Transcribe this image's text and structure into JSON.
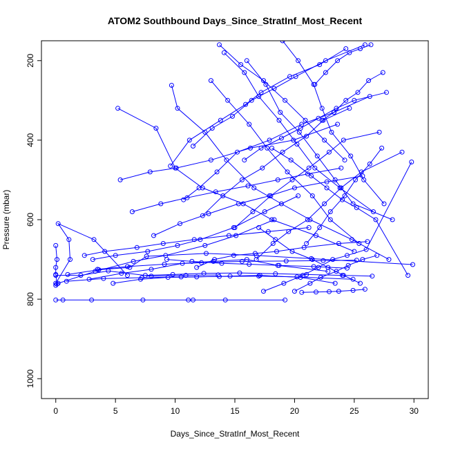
{
  "chart_data": {
    "type": "line",
    "title": "ATOM2 Southbound Days_Since_StratInf_Most_Recent",
    "xlabel": "Days_Since_StratInf_Most_Recent",
    "ylabel": "Pressure (mbar)",
    "xlim": [
      -1.2,
      31.2
    ],
    "ylim": [
      1050,
      150
    ],
    "y_reversed": true,
    "x_ticks": [
      0,
      5,
      10,
      15,
      20,
      25,
      30
    ],
    "y_ticks": [
      200,
      400,
      600,
      800,
      1000
    ],
    "grid": false,
    "marker": "open-circle",
    "colors": {
      "series": "#0000ff",
      "axes": "#000000"
    },
    "series": [
      {
        "x": [
          0.0,
          0.6,
          3.0,
          7.3,
          11.1,
          11.5,
          14.2,
          19.2
        ],
        "y": [
          802,
          802,
          802,
          802,
          802,
          802,
          802,
          802
        ]
      },
      {
        "x": [
          0.0,
          0.1,
          0.0,
          0.0,
          0.1,
          0.0
        ],
        "y": [
          765,
          762,
          738,
          720,
          700,
          665
        ]
      },
      {
        "x": [
          0.0,
          1.2,
          1.1,
          0.2,
          3.2,
          6.0
        ],
        "y": [
          760,
          700,
          650,
          610,
          650,
          740
        ]
      },
      {
        "x": [
          0.0,
          2.1,
          4.4,
          8.0,
          10.9,
          13.6
        ],
        "y": [
          740,
          740,
          729,
          742,
          740,
          739
        ]
      },
      {
        "x": [
          0.2,
          3.3,
          6.5,
          9.2,
          12.5,
          15.1,
          18.3
        ],
        "y": [
          760,
          730,
          705,
          690,
          665,
          640,
          600
        ]
      },
      {
        "x": [
          1.0,
          3.6,
          6.2,
          7.6,
          12.6,
          16.8,
          21.4,
          29.9
        ],
        "y": [
          738,
          726,
          720,
          692,
          685,
          690,
          698,
          713
        ]
      },
      {
        "x": [
          2.8,
          5.5,
          8.0,
          10.6,
          13.2,
          16.0,
          18.6,
          22.8
        ],
        "y": [
          750,
          735,
          725,
          710,
          705,
          700,
          715,
          730
        ]
      },
      {
        "x": [
          3.1,
          5.0,
          7.7,
          10.2,
          12.1,
          14.9,
          17.5,
          20.3
        ],
        "y": [
          700,
          690,
          680,
          665,
          650,
          620,
          580,
          540
        ]
      },
      {
        "x": [
          5.2,
          8.4,
          10.0,
          12.3,
          15.7,
          18.1,
          21.8,
          25.0
        ],
        "y": [
          320,
          370,
          470,
          520,
          560,
          600,
          640,
          680
        ]
      },
      {
        "x": [
          5.4,
          7.9,
          10.1,
          13.0,
          16.3,
          19.9,
          23.6
        ],
        "y": [
          500,
          480,
          470,
          450,
          420,
          400,
          360
        ]
      },
      {
        "x": [
          9.6,
          11.2,
          13.8,
          15.9,
          17.2,
          19.6,
          22.1,
          24.3
        ],
        "y": [
          465,
          400,
          350,
          310,
          280,
          240,
          210,
          170
        ]
      },
      {
        "x": [
          9.7,
          10.2,
          12.5,
          14.3,
          16.6,
          18.9,
          21.3,
          24.8,
          27.9
        ],
        "y": [
          262,
          320,
          380,
          450,
          520,
          560,
          600,
          650,
          700
        ]
      },
      {
        "x": [
          10.7,
          12.0,
          13.5,
          15.2,
          17.9,
          20.6,
          23.3,
          26.3
        ],
        "y": [
          550,
          520,
          480,
          430,
          400,
          360,
          330,
          290
        ]
      },
      {
        "x": [
          11.5,
          13.1,
          14.8,
          16.4,
          18.3,
          20.1,
          22.6,
          25.9
        ],
        "y": [
          415,
          370,
          340,
          300,
          270,
          240,
          200,
          160
        ]
      },
      {
        "x": [
          12.3,
          14.0,
          15.6,
          17.3,
          19.0,
          21.0,
          22.4,
          24.6
        ],
        "y": [
          590,
          540,
          500,
          470,
          430,
          390,
          350,
          320
        ]
      },
      {
        "x": [
          13.0,
          14.4,
          16.2,
          17.7,
          19.4,
          21.5,
          23.0,
          25.4
        ],
        "y": [
          250,
          300,
          360,
          420,
          480,
          540,
          600,
          660
        ]
      },
      {
        "x": [
          14.1,
          15.8,
          17.0,
          18.7,
          20.2,
          21.7,
          23.8,
          26.6
        ],
        "y": [
          180,
          230,
          290,
          350,
          410,
          470,
          520,
          580
        ]
      },
      {
        "x": [
          15.0,
          16.5,
          18.0,
          19.8,
          21.2,
          22.9,
          24.1,
          27.1
        ],
        "y": [
          620,
          580,
          540,
          500,
          470,
          430,
          400,
          380
        ]
      },
      {
        "x": [
          16.0,
          17.6,
          18.8,
          20.4,
          21.9,
          23.4,
          24.9,
          28.2
        ],
        "y": [
          200,
          260,
          330,
          380,
          440,
          500,
          560,
          600
        ]
      },
      {
        "x": [
          16.8,
          18.2,
          19.5,
          21.1,
          22.5,
          23.9,
          25.6,
          29.0
        ],
        "y": [
          700,
          660,
          630,
          600,
          560,
          520,
          480,
          430
        ]
      },
      {
        "x": [
          17.4,
          19.1,
          20.7,
          22.0,
          23.2,
          24.4,
          26.0,
          29.8
        ],
        "y": [
          780,
          760,
          740,
          720,
          700,
          690,
          675,
          455
        ]
      },
      {
        "x": [
          18.1,
          19.7,
          21.4,
          22.7,
          24.0,
          25.2,
          26.8,
          29.5
        ],
        "y": [
          420,
          450,
          490,
          520,
          550,
          570,
          600,
          740
        ]
      },
      {
        "x": [
          19.0,
          20.3,
          21.6,
          22.3,
          23.1,
          24.7,
          25.8,
          27.5
        ],
        "y": [
          150,
          200,
          260,
          320,
          380,
          440,
          500,
          560
        ]
      },
      {
        "x": [
          20.0,
          21.3,
          22.2,
          23.5,
          24.5,
          25.7,
          26.9
        ],
        "y": [
          780,
          760,
          745,
          730,
          715,
          700,
          690
        ]
      },
      {
        "x": [
          20.6,
          21.8,
          22.9,
          23.7,
          24.9,
          25.9
        ],
        "y": [
          783,
          782,
          781,
          780,
          778,
          775
        ]
      },
      {
        "x": [
          21.0,
          22.1,
          23.0,
          24.2,
          25.1,
          26.3,
          27.3
        ],
        "y": [
          660,
          620,
          580,
          540,
          500,
          460,
          420
        ]
      },
      {
        "x": [
          21.7,
          22.6,
          23.6,
          24.6,
          25.5,
          26.4
        ],
        "y": [
          260,
          230,
          200,
          180,
          170,
          160
        ]
      },
      {
        "x": [
          22.3,
          23.3,
          24.3,
          25.3,
          26.2,
          27.4
        ],
        "y": [
          350,
          330,
          300,
          280,
          250,
          230
        ]
      },
      {
        "x": [
          7.5,
          9.8,
          12.4,
          15.4,
          18.4,
          21.0,
          24.0,
          26.5
        ],
        "y": [
          740,
          738,
          735,
          734,
          736,
          738,
          740,
          742
        ]
      },
      {
        "x": [
          4.8,
          7.1,
          9.4,
          11.8,
          14.6,
          17.1,
          20.5,
          23.4
        ],
        "y": [
          760,
          750,
          745,
          744,
          742,
          740,
          745,
          760
        ]
      },
      {
        "x": [
          2.4,
          4.1,
          6.8,
          9.0,
          11.6,
          14.5,
          17.8,
          21.2
        ],
        "y": [
          690,
          680,
          670,
          660,
          650,
          640,
          630,
          620
        ]
      },
      {
        "x": [
          8.2,
          10.4,
          12.8,
          15.3,
          17.9,
          20.0,
          22.7,
          25.7
        ],
        "y": [
          640,
          610,
          585,
          560,
          540,
          520,
          505,
          490
        ]
      },
      {
        "x": [
          6.4,
          8.8,
          11.0,
          13.4,
          16.1,
          18.6,
          21.1,
          23.9
        ],
        "y": [
          580,
          560,
          545,
          530,
          515,
          500,
          485,
          470
        ]
      },
      {
        "x": [
          13.7,
          15.5,
          17.4,
          19.2,
          20.9,
          22.5,
          24.2
        ],
        "y": [
          160,
          210,
          250,
          300,
          350,
          400,
          450
        ]
      },
      {
        "x": [
          11.8,
          13.3,
          14.9,
          16.7,
          18.5,
          20.8,
          23.7,
          26.1
        ],
        "y": [
          720,
          700,
          690,
          685,
          680,
          670,
          660,
          655
        ]
      },
      {
        "x": [
          9.3,
          11.4,
          13.9,
          16.2,
          18.7,
          21.6,
          24.4
        ],
        "y": [
          700,
          705,
          710,
          712,
          715,
          718,
          722
        ]
      },
      {
        "x": [
          15.8,
          17.2,
          18.9,
          20.5,
          22.0,
          23.5,
          25.0,
          27.7
        ],
        "y": [
          450,
          420,
          395,
          370,
          345,
          320,
          300,
          280
        ]
      },
      {
        "x": [
          17.0,
          18.4,
          19.8,
          21.5,
          22.8,
          24.1,
          25.5
        ],
        "y": [
          620,
          650,
          680,
          700,
          720,
          740,
          760
        ]
      },
      {
        "x": [
          3.5,
          6.0,
          9.1,
          12.2,
          15.6,
          19.3,
          22.4,
          25.2
        ],
        "y": [
          725,
          718,
          712,
          708,
          705,
          704,
          703,
          702
        ]
      },
      {
        "x": [
          0.9,
          4.0,
          7.2,
          10.5,
          13.7,
          17.0,
          20.2,
          24.9
        ],
        "y": [
          755,
          748,
          746,
          744,
          743,
          742,
          744,
          750
        ]
      }
    ]
  }
}
